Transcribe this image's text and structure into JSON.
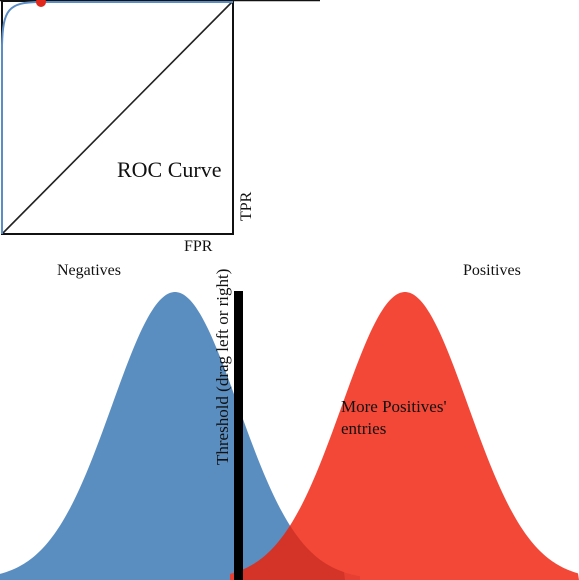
{
  "roc": {
    "title": "ROC Curve",
    "xlabel": "FPR",
    "ylabel": "TPR",
    "point_color": "#e0281c",
    "curve_color": "#5b8cc4"
  },
  "distributions": {
    "negatives_label": "Negatives",
    "positives_label": "Positives",
    "negatives_color": "#5b8ec0",
    "positives_color": "#f23a28",
    "overlap_color": "#e43222"
  },
  "threshold": {
    "label": "Threshold (drag left or right)"
  },
  "annotation": {
    "line1": "More Positives'",
    "line2": "entries"
  }
}
